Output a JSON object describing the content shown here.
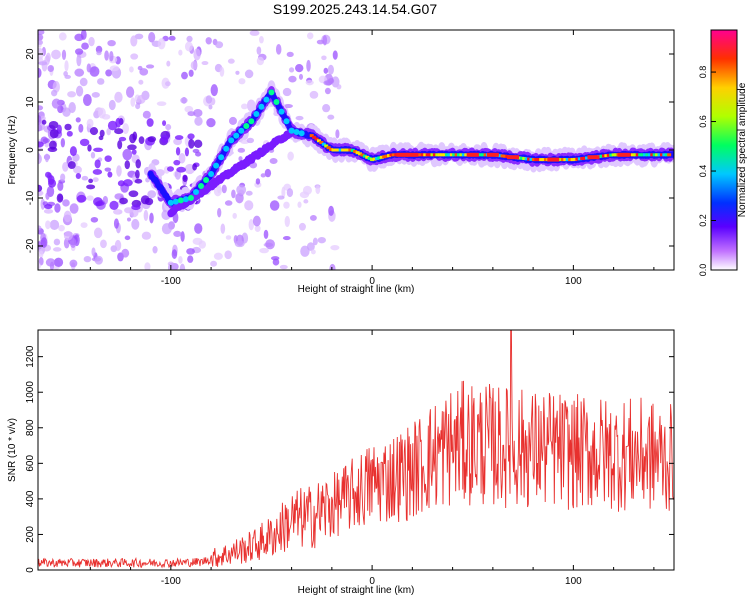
{
  "title": "S199.2025.243.14.54.G07",
  "chart_data": [
    {
      "type": "heatmap",
      "name": "spectrogram",
      "xlabel": "Height of straight line (km)",
      "ylabel": "Frequency (Hz)",
      "xlim": [
        -166,
        150
      ],
      "ylim": [
        -25,
        25
      ],
      "xticks": [
        -100,
        0,
        100
      ],
      "yticks": [
        -20,
        -10,
        0,
        10,
        20
      ],
      "colorbar": {
        "label": "Normalized spectral amplitude",
        "range": [
          0,
          0.97
        ],
        "ticks": [
          0.0,
          0.2,
          0.4,
          0.6,
          0.8
        ]
      },
      "ridge": [
        {
          "x": -166,
          "y": 3
        },
        {
          "x": -150,
          "y": 2
        },
        {
          "x": -130,
          "y": 0
        },
        {
          "x": -115,
          "y": -2
        },
        {
          "x": -100,
          "y": -11
        },
        {
          "x": -90,
          "y": -10
        },
        {
          "x": -80,
          "y": -5
        },
        {
          "x": -70,
          "y": 2
        },
        {
          "x": -60,
          "y": 6
        },
        {
          "x": -50,
          "y": 12
        },
        {
          "x": -40,
          "y": 4
        },
        {
          "x": -30,
          "y": 3
        },
        {
          "x": -20,
          "y": 0
        },
        {
          "x": -10,
          "y": 0
        },
        {
          "x": 0,
          "y": -2
        },
        {
          "x": 10,
          "y": -1
        },
        {
          "x": 20,
          "y": -1
        },
        {
          "x": 40,
          "y": -1
        },
        {
          "x": 60,
          "y": -1
        },
        {
          "x": 80,
          "y": -2
        },
        {
          "x": 100,
          "y": -2
        },
        {
          "x": 120,
          "y": -1
        },
        {
          "x": 140,
          "y": -1
        },
        {
          "x": 150,
          "y": -1
        }
      ]
    },
    {
      "type": "line",
      "name": "snr",
      "xlabel": "Height of straight line (km)",
      "ylabel": "SNR (10 * v/v)",
      "xlim": [
        -166,
        150
      ],
      "ylim": [
        0,
        1350
      ],
      "xticks": [
        -100,
        0,
        100
      ],
      "yticks": [
        0,
        200,
        400,
        600,
        800,
        1000,
        1200
      ],
      "series": [
        {
          "name": "SNR",
          "color": "#e8302e",
          "x": [
            -166,
            -140,
            -120,
            -100,
            -85,
            -75,
            -60,
            -50,
            -40,
            -30,
            -20,
            -10,
            0,
            10,
            20,
            30,
            40,
            50,
            60,
            70,
            80,
            90,
            100,
            110,
            120,
            130,
            140,
            150
          ],
          "y": [
            40,
            40,
            40,
            40,
            45,
            80,
            130,
            190,
            280,
            300,
            360,
            420,
            490,
            520,
            560,
            640,
            700,
            720,
            700,
            690,
            680,
            680,
            660,
            660,
            650,
            650,
            640,
            620
          ]
        }
      ],
      "peak": {
        "x": 69,
        "y": 1350
      }
    }
  ],
  "colors": {
    "background": "#ffffff",
    "axis": "#000000",
    "snr_line": "#e8302e"
  }
}
